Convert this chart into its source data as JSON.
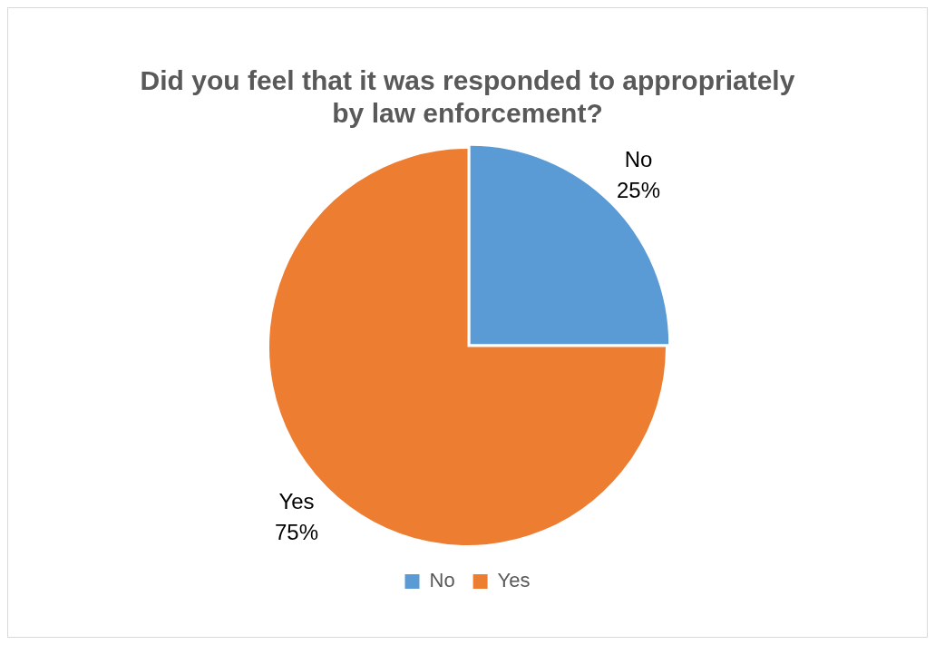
{
  "chart_data": {
    "type": "pie",
    "title": "Did you feel that it was responded to appropriately by law enforcement?",
    "categories": [
      "No",
      "Yes"
    ],
    "values": [
      25,
      75
    ],
    "colors": [
      "#5b9bd5",
      "#ed7d31"
    ],
    "value_labels": [
      "25%",
      "75%"
    ],
    "legend": "bottom"
  }
}
